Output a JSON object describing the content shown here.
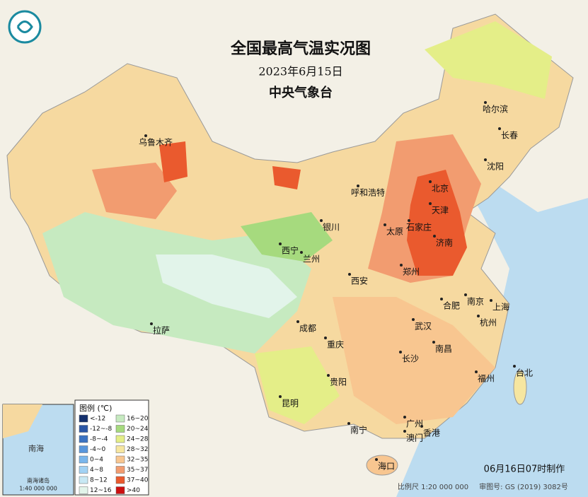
{
  "header": {
    "title": "全国最高气温实况图",
    "date": "2023年6月15日",
    "agency": "中央气象台"
  },
  "legend": {
    "title": "图例 (℃)",
    "items": [
      {
        "label": "<-12",
        "color": "#14306e"
      },
      {
        "label": "-12~-8",
        "color": "#2a56a6"
      },
      {
        "label": "-8~-4",
        "color": "#3a72c2"
      },
      {
        "label": "-4~0",
        "color": "#5896dc"
      },
      {
        "label": "0~4",
        "color": "#7ab6ec"
      },
      {
        "label": "4~8",
        "color": "#a2d2f4"
      },
      {
        "label": "8~12",
        "color": "#c8e8f4"
      },
      {
        "label": "12~16",
        "color": "#e2f4ea"
      },
      {
        "label": "16~20",
        "color": "#c6eac0"
      },
      {
        "label": "20~24",
        "color": "#a6da7e"
      },
      {
        "label": "24~28",
        "color": "#e4ee88"
      },
      {
        "label": "28~32",
        "color": "#f6e6a0"
      },
      {
        "label": "32~35",
        "color": "#f8c690"
      },
      {
        "label": "35~37",
        "color": "#f29c70"
      },
      {
        "label": "37~40",
        "color": "#ea5a2e"
      },
      {
        "label": ">40",
        "color": "#cc1010"
      }
    ]
  },
  "cities": [
    "乌鲁木齐",
    "哈尔滨",
    "长春",
    "沈阳",
    "呼和浩特",
    "北京",
    "天津",
    "银川",
    "太原",
    "石家庄",
    "济南",
    "西宁",
    "兰州",
    "郑州",
    "西安",
    "合肥",
    "南京",
    "上海",
    "拉萨",
    "成都",
    "武汉",
    "杭州",
    "重庆",
    "南昌",
    "长沙",
    "福州",
    "台北",
    "贵阳",
    "昆明",
    "南宁",
    "广州",
    "香港",
    "澳门",
    "海口"
  ],
  "inset": {
    "sea": "南海",
    "islands": "南海诸岛",
    "scale": "1:40 000 000"
  },
  "footer": {
    "issued": "06月16日07时制作",
    "scale": "比例尺 1:20 000 000",
    "review": "审图号: GS (2019) 3082号"
  }
}
